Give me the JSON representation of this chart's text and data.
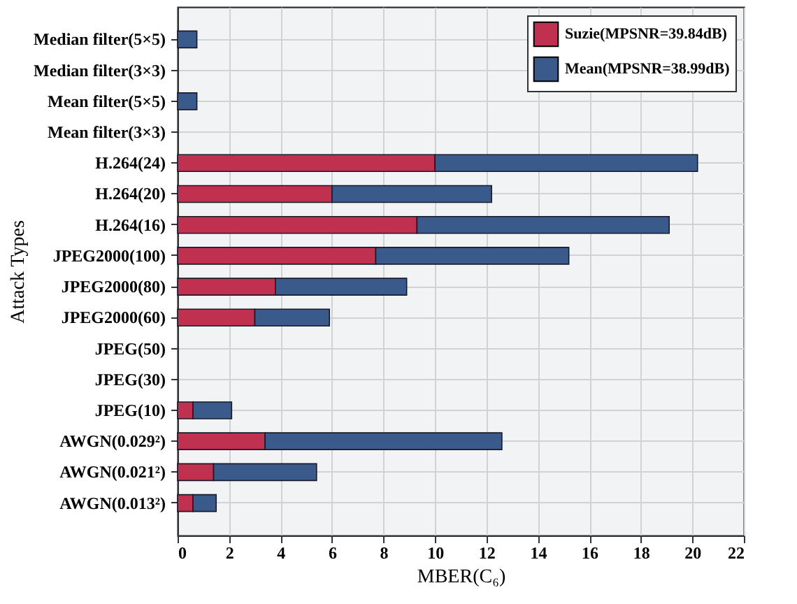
{
  "chart_data": {
    "type": "bar",
    "orientation": "horizontal",
    "stacked": true,
    "xlabel": "MBER(C₆)",
    "ylabel": "Attack Types",
    "categories": [
      "Median filter(5×5)",
      "Median filter(3×3)",
      "Mean filter(5×5)",
      "Mean filter(3×3)",
      "H.264(24)",
      "H.264(20)",
      "H.264(16)",
      "JPEG2000(100)",
      "JPEG2000(80)",
      "JPEG2000(60)",
      "JPEG(50)",
      "JPEG(30)",
      "JPEG(10)",
      "AWGN(0.029²)",
      "AWGN(0.021²)",
      "AWGN(0.013²)"
    ],
    "series": [
      {
        "name": "Suzie(MPSNR=39.84dB)",
        "color": "#c0304f",
        "values": [
          0,
          0,
          0,
          0,
          10.0,
          6.0,
          9.3,
          7.7,
          3.8,
          3.0,
          0,
          0,
          0.6,
          3.4,
          1.4,
          0.6
        ]
      },
      {
        "name": "Mean(MPSNR=38.99dB)",
        "color": "#3a5a8c",
        "values": [
          0.75,
          0,
          0.75,
          0,
          10.2,
          6.2,
          9.8,
          7.5,
          5.1,
          2.9,
          0,
          0,
          1.5,
          9.2,
          4.0,
          0.9
        ]
      }
    ],
    "xlim": [
      0,
      22
    ],
    "xticks": [
      0,
      2,
      4,
      6,
      8,
      10,
      12,
      14,
      16,
      18,
      20,
      22
    ],
    "grid": true,
    "legend": "top right"
  }
}
